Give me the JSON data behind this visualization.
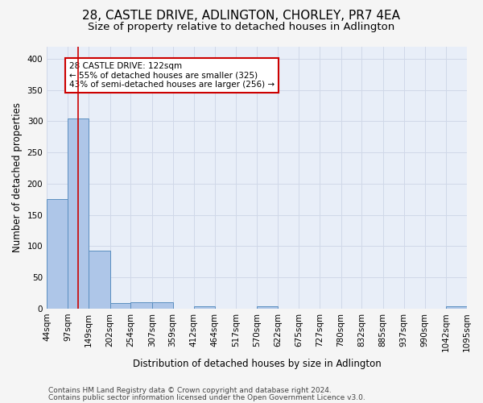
{
  "title": "28, CASTLE DRIVE, ADLINGTON, CHORLEY, PR7 4EA",
  "subtitle": "Size of property relative to detached houses in Adlington",
  "xlabel": "Distribution of detached houses by size in Adlington",
  "ylabel": "Number of detached properties",
  "footnote1": "Contains HM Land Registry data © Crown copyright and database right 2024.",
  "footnote2": "Contains public sector information licensed under the Open Government Licence v3.0.",
  "bin_edges": [
    44,
    97,
    149,
    202,
    254,
    307,
    359,
    412,
    464,
    517,
    570,
    622,
    675,
    727,
    780,
    832,
    885,
    937,
    990,
    1042,
    1095
  ],
  "bar_heights": [
    175,
    305,
    92,
    9,
    10,
    10,
    0,
    4,
    0,
    0,
    4,
    0,
    0,
    0,
    0,
    0,
    0,
    0,
    0,
    3
  ],
  "bar_color": "#aec6e8",
  "bar_edge_color": "#5b8fc0",
  "property_size": 122,
  "vline_color": "#cc0000",
  "annotation_text": "28 CASTLE DRIVE: 122sqm\n← 55% of detached houses are smaller (325)\n43% of semi-detached houses are larger (256) →",
  "annotation_box_color": "#ffffff",
  "annotation_box_edge": "#cc0000",
  "ylim": [
    0,
    420
  ],
  "yticks": [
    0,
    50,
    100,
    150,
    200,
    250,
    300,
    350,
    400
  ],
  "grid_color": "#d0d8e8",
  "bg_color": "#e8eef8",
  "fig_bg_color": "#f5f5f5",
  "title_fontsize": 11,
  "subtitle_fontsize": 9.5,
  "axis_label_fontsize": 8.5,
  "tick_fontsize": 7.5,
  "annotation_fontsize": 7.5,
  "footnote_fontsize": 6.5
}
